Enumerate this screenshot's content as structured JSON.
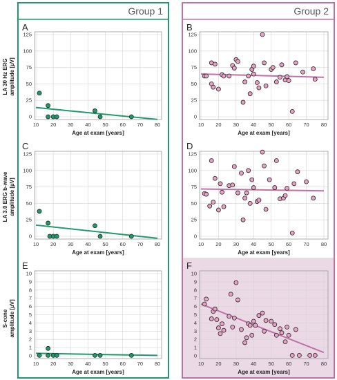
{
  "groups": [
    {
      "title": "Group 1",
      "color": "#1f9a6b"
    },
    {
      "title": "Group 2",
      "color": "#c070a8"
    }
  ],
  "row_ylabels": [
    [
      "LA 30 Hz ERG",
      "amplitude [µV]"
    ],
    [
      "LA 3.0 ERG b-wave",
      "amplitude [µV]"
    ],
    [
      "S-cone",
      "amplitude [µV]"
    ]
  ],
  "chart_data": [
    {
      "panel": "A",
      "type": "scatter",
      "xlabel": "Age at exam [years]",
      "xlim": [
        10,
        80
      ],
      "xticks": [
        10,
        20,
        30,
        40,
        50,
        60,
        70,
        80
      ],
      "ylim": [
        0,
        125
      ],
      "yticks": [
        0,
        25,
        50,
        75,
        100,
        125
      ],
      "points": [
        [
          12,
          36
        ],
        [
          17,
          17
        ],
        [
          17,
          0
        ],
        [
          20,
          0
        ],
        [
          22,
          0
        ],
        [
          44,
          9
        ],
        [
          47,
          0
        ],
        [
          65,
          0
        ]
      ],
      "trend": [
        [
          10,
          14
        ],
        [
          80,
          -4
        ]
      ],
      "point_color": "#1f9a6b",
      "line_color": "#1f9a6b"
    },
    {
      "panel": "B",
      "type": "scatter",
      "xlabel": "Age at exam [years]",
      "xlim": [
        10,
        80
      ],
      "xticks": [
        10,
        20,
        30,
        40,
        50,
        60,
        70,
        80
      ],
      "ylim": [
        0,
        125
      ],
      "yticks": [
        0,
        25,
        50,
        75,
        100,
        125
      ],
      "points": [
        [
          12,
          62
        ],
        [
          13,
          62
        ],
        [
          16,
          82
        ],
        [
          16,
          50
        ],
        [
          17,
          45
        ],
        [
          18,
          80
        ],
        [
          20,
          42
        ],
        [
          22,
          64
        ],
        [
          23,
          62
        ],
        [
          26,
          62
        ],
        [
          28,
          78
        ],
        [
          29,
          74
        ],
        [
          30,
          87
        ],
        [
          31,
          84
        ],
        [
          34,
          22
        ],
        [
          35,
          53
        ],
        [
          37,
          62
        ],
        [
          38,
          35
        ],
        [
          39,
          72
        ],
        [
          40,
          77
        ],
        [
          40,
          65
        ],
        [
          42,
          52
        ],
        [
          43,
          44
        ],
        [
          45,
          125
        ],
        [
          46,
          82
        ],
        [
          47,
          47
        ],
        [
          50,
          72
        ],
        [
          51,
          75
        ],
        [
          53,
          53
        ],
        [
          55,
          60
        ],
        [
          56,
          79
        ],
        [
          58,
          56
        ],
        [
          59,
          61
        ],
        [
          60,
          55
        ],
        [
          62,
          8
        ],
        [
          64,
          82
        ],
        [
          68,
          68
        ],
        [
          74,
          73
        ],
        [
          75,
          57
        ]
      ],
      "trend": [
        [
          10,
          65
        ],
        [
          80,
          60
        ]
      ],
      "point_color": "#e9a0c5",
      "line_color": "#c070a8"
    },
    {
      "panel": "C",
      "type": "scatter",
      "xlabel": "Age at exam [years]",
      "xlim": [
        10,
        80
      ],
      "xticks": [
        10,
        20,
        30,
        40,
        50,
        60,
        70,
        80
      ],
      "ylim": [
        0,
        125
      ],
      "yticks": [
        0,
        25,
        50,
        75,
        100,
        125
      ],
      "points": [
        [
          12,
          38
        ],
        [
          17,
          20
        ],
        [
          18,
          0
        ],
        [
          20,
          0
        ],
        [
          22,
          0
        ],
        [
          44,
          16
        ],
        [
          47,
          0
        ],
        [
          65,
          0
        ]
      ],
      "trend": [
        [
          10,
          17
        ],
        [
          80,
          -3
        ]
      ],
      "point_color": "#1f9a6b",
      "line_color": "#1f9a6b"
    },
    {
      "panel": "D",
      "type": "scatter",
      "xlabel": "Age at exam [years]",
      "xlim": [
        10,
        80
      ],
      "xticks": [
        10,
        20,
        30,
        40,
        50,
        60,
        70,
        80
      ],
      "ylim": [
        0,
        125
      ],
      "yticks": [
        0,
        25,
        50,
        75,
        100,
        125
      ],
      "points": [
        [
          12,
          65
        ],
        [
          13,
          64
        ],
        [
          15,
          46
        ],
        [
          16,
          115
        ],
        [
          17,
          52
        ],
        [
          18,
          88
        ],
        [
          20,
          40
        ],
        [
          21,
          80
        ],
        [
          22,
          67
        ],
        [
          23,
          45
        ],
        [
          26,
          77
        ],
        [
          28,
          78
        ],
        [
          29,
          106
        ],
        [
          31,
          66
        ],
        [
          33,
          96
        ],
        [
          34,
          25
        ],
        [
          35,
          58
        ],
        [
          36,
          66
        ],
        [
          37,
          100
        ],
        [
          38,
          50
        ],
        [
          39,
          86
        ],
        [
          40,
          74
        ],
        [
          42,
          53
        ],
        [
          43,
          55
        ],
        [
          45,
          128
        ],
        [
          46,
          107
        ],
        [
          47,
          41
        ],
        [
          49,
          86
        ],
        [
          52,
          74
        ],
        [
          53,
          115
        ],
        [
          55,
          57
        ],
        [
          57,
          58
        ],
        [
          58,
          62
        ],
        [
          59,
          73
        ],
        [
          62,
          5
        ],
        [
          63,
          80
        ],
        [
          65,
          98
        ],
        [
          70,
          83
        ],
        [
          74,
          58
        ]
      ],
      "trend": [
        [
          10,
          72
        ],
        [
          80,
          69
        ]
      ],
      "point_color": "#e9a0c5",
      "line_color": "#c070a8"
    },
    {
      "panel": "E",
      "type": "scatter",
      "xlabel": "Age at exam [years]",
      "xlim": [
        10,
        80
      ],
      "xticks": [
        10,
        20,
        30,
        40,
        50,
        60,
        70,
        80
      ],
      "ylim": [
        0,
        10
      ],
      "yticks": [
        0,
        1,
        2,
        3,
        4,
        5,
        6,
        7,
        8,
        9,
        10
      ],
      "points": [
        [
          12,
          0.05
        ],
        [
          17,
          0.9
        ],
        [
          17,
          0.05
        ],
        [
          20,
          0.05
        ],
        [
          22,
          0.05
        ],
        [
          44,
          0.05
        ],
        [
          47,
          0.05
        ],
        [
          65,
          0.05
        ]
      ],
      "trend": [
        [
          10,
          0.3
        ],
        [
          80,
          0.05
        ]
      ],
      "point_color": "#1f9a6b",
      "line_color": "#1f9a6b"
    },
    {
      "panel": "F",
      "type": "scatter",
      "xlabel": "Age at exam [years]",
      "xlim": [
        10,
        80
      ],
      "xticks": [
        10,
        20,
        30,
        40,
        50,
        60,
        70,
        80
      ],
      "ylim": [
        0,
        10
      ],
      "yticks": [
        0,
        1,
        2,
        3,
        4,
        5,
        6,
        7,
        8,
        9,
        10
      ],
      "points": [
        [
          12,
          6.3
        ],
        [
          13,
          6.9
        ],
        [
          16,
          4.5
        ],
        [
          17,
          5.4
        ],
        [
          18,
          5.7
        ],
        [
          19,
          4.4
        ],
        [
          20,
          3.4
        ],
        [
          21,
          2.7
        ],
        [
          22,
          3.9
        ],
        [
          23,
          3.1
        ],
        [
          26,
          4.8
        ],
        [
          27,
          7.5
        ],
        [
          28,
          3.5
        ],
        [
          29,
          4.6
        ],
        [
          30,
          8.9
        ],
        [
          31,
          6.8
        ],
        [
          33,
          3.2
        ],
        [
          35,
          1.6
        ],
        [
          36,
          2.2
        ],
        [
          37,
          3.9
        ],
        [
          38,
          3.7
        ],
        [
          39,
          2.5
        ],
        [
          40,
          4.2
        ],
        [
          41,
          3.7
        ],
        [
          43,
          4.9
        ],
        [
          45,
          5.2
        ],
        [
          46,
          3.0
        ],
        [
          47,
          4.3
        ],
        [
          50,
          4.2
        ],
        [
          52,
          3.8
        ],
        [
          53,
          2.5
        ],
        [
          55,
          3.3
        ],
        [
          56,
          2.8
        ],
        [
          58,
          1.7
        ],
        [
          59,
          3.5
        ],
        [
          60,
          2.5
        ],
        [
          62,
          0.05
        ],
        [
          64,
          3.2
        ],
        [
          66,
          0.05
        ],
        [
          72,
          0.05
        ],
        [
          75,
          0.05
        ]
      ],
      "trend": [
        [
          10,
          6.3
        ],
        [
          80,
          0.4
        ]
      ],
      "point_color": "#e9a0c5",
      "line_color": "#c070a8"
    }
  ],
  "row_y_unitless": ""
}
